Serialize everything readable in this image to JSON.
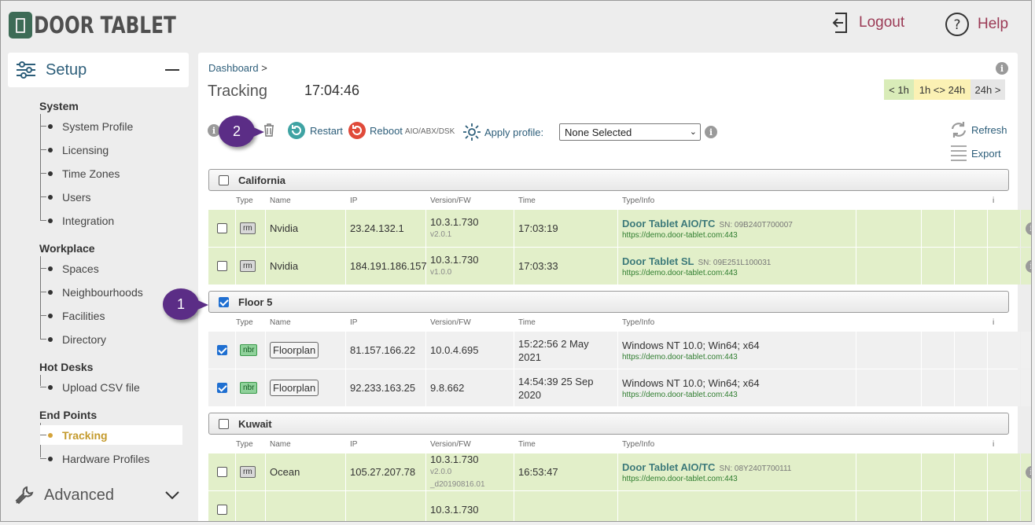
{
  "header": {
    "logo_text": "DOOR TABLET",
    "logout": "Logout",
    "help": "Help"
  },
  "sidebar": {
    "setup": "Setup",
    "advanced": "Advanced",
    "sections": [
      {
        "title": "System",
        "items": [
          "System Profile",
          "Licensing",
          "Time Zones",
          "Users",
          "Integration"
        ]
      },
      {
        "title": "Workplace",
        "items": [
          "Spaces",
          "Neighbourhoods",
          "Facilities",
          "Directory"
        ]
      },
      {
        "title": "Hot Desks",
        "items": [
          "Upload CSV file"
        ]
      },
      {
        "title": "End Points",
        "items": [
          "Tracking",
          "Hardware Profiles"
        ]
      }
    ]
  },
  "main": {
    "breadcrumb": "Dashboard",
    "breadcrumb_sep": ">",
    "title": "Tracking",
    "clock": "17:04:46",
    "ranges": [
      "< 1h",
      "1h <> 24h",
      "24h >"
    ],
    "toolbar": {
      "restart": "Restart",
      "reboot": "Reboot",
      "reboot_note": "AIO/ABX/DSK",
      "apply_profile": "Apply profile:",
      "profile_value": "None Selected",
      "refresh": "Refresh",
      "export": "Export"
    },
    "columns": [
      "Type",
      "Name",
      "IP",
      "Version/FW",
      "Time",
      "Type/Info",
      "i"
    ],
    "groups": [
      {
        "name": "California",
        "checked": false,
        "rows": [
          {
            "checked": false,
            "type": "rm",
            "name": "Nvidia",
            "ip": "23.24.132.1",
            "version": "10.3.1.730",
            "fw": "v2.0.1",
            "fw2": "",
            "time": "17:03:19",
            "device": "Door Tablet AIO/TC",
            "sn": "SN: 09B240T700007",
            "url": "https://demo.door-tablet.com:443"
          },
          {
            "checked": false,
            "type": "rm",
            "name": "Nvidia",
            "ip": "184.191.186.157",
            "version": "10.3.1.730",
            "fw": "v1.0.0",
            "fw2": "",
            "time": "17:03:33",
            "device": "Door Tablet SL",
            "sn": "SN: 09E251L100031",
            "url": "https://demo.door-tablet.com:443"
          }
        ]
      },
      {
        "name": "Floor 5",
        "checked": true,
        "rows": [
          {
            "checked": true,
            "type": "nbr",
            "name": "Floorplan",
            "ip": "81.157.166.22",
            "version": "10.0.4.695",
            "fw": "",
            "fw2": "",
            "time": "15:22:56 2 May 2021",
            "device": "Windows NT 10.0; Win64; x64",
            "sn": "",
            "url": "https://demo.door-tablet.com:443"
          },
          {
            "checked": true,
            "type": "nbr",
            "name": "Floorplan",
            "ip": "92.233.163.25",
            "version": "9.8.662",
            "fw": "",
            "fw2": "",
            "time": "14:54:39 25 Sep 2020",
            "device": "Windows NT 10.0; Win64; x64",
            "sn": "",
            "url": "https://demo.door-tablet.com:443"
          }
        ]
      },
      {
        "name": "Kuwait",
        "checked": false,
        "rows": [
          {
            "checked": false,
            "type": "rm",
            "name": "Ocean",
            "ip": "105.27.207.78",
            "version": "10.3.1.730",
            "fw": "v2.0.0",
            "fw2": "_d20190816.01",
            "time": "16:53:47",
            "device": "Door Tablet AIO/TC",
            "sn": "SN: 08Y240T700111",
            "url": "https://demo.door-tablet.com:443"
          },
          {
            "checked": false,
            "type": "",
            "name": "",
            "ip": "",
            "version": "10.3.1.730",
            "fw": "",
            "fw2": "",
            "time": "",
            "device": "",
            "sn": "",
            "url": ""
          }
        ]
      }
    ]
  },
  "annotations": [
    "1",
    "2"
  ],
  "colors": {
    "accent": "#2d5e7a",
    "logout": "#9b3a55",
    "row_green": "#e2efc9",
    "badge": "#5b2d86",
    "active": "#c49a2c"
  }
}
